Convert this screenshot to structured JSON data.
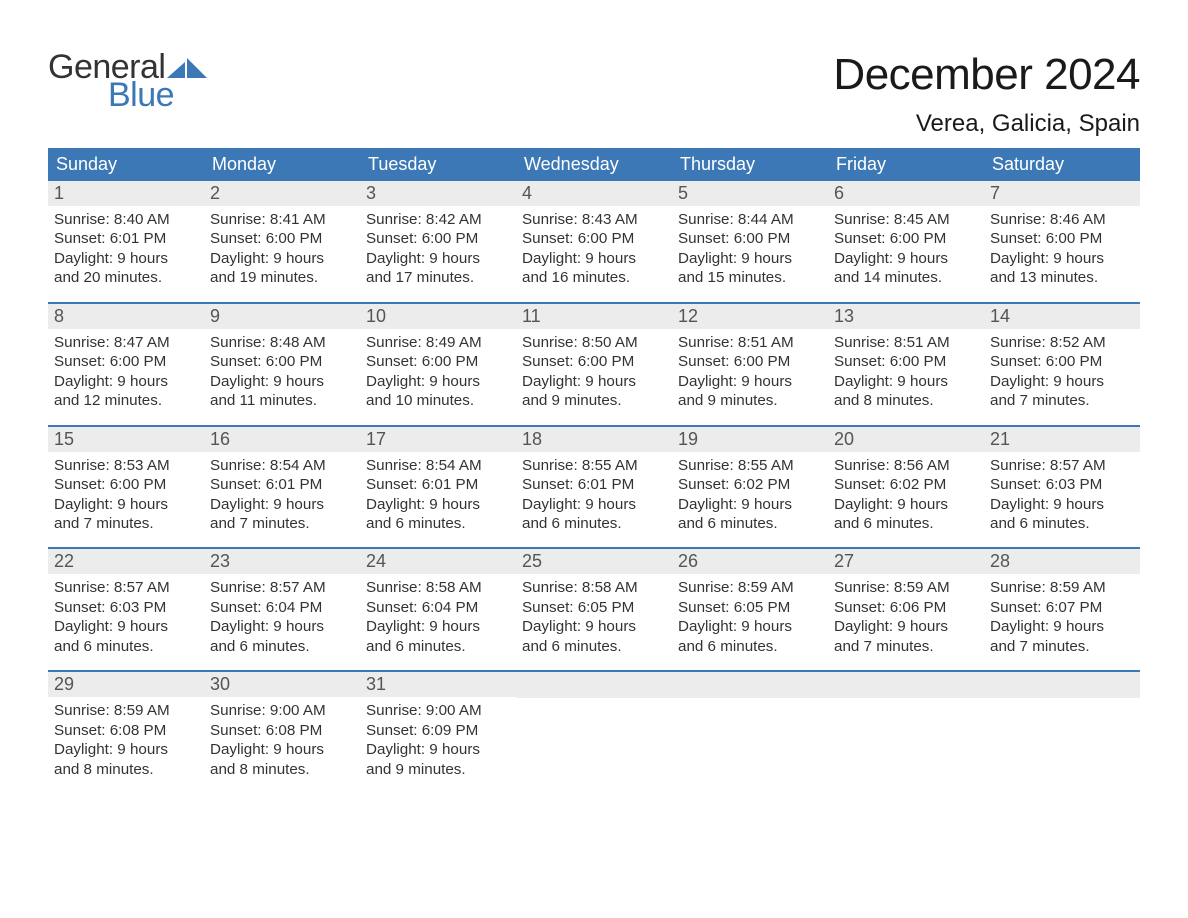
{
  "brand": {
    "word1": "General",
    "word2": "Blue",
    "accent_color": "#3b78b5"
  },
  "title": {
    "month": "December 2024",
    "location": "Verea, Galicia, Spain"
  },
  "day_names": [
    "Sunday",
    "Monday",
    "Tuesday",
    "Wednesday",
    "Thursday",
    "Friday",
    "Saturday"
  ],
  "colors": {
    "header_bg": "#3b78b5",
    "header_text": "#ffffff",
    "rule": "#3b78b5",
    "numrow_bg": "#ececec",
    "text": "#333333",
    "background": "#ffffff"
  },
  "typography": {
    "title_fontsize": 44,
    "location_fontsize": 24,
    "dayhead_fontsize": 18,
    "daynum_fontsize": 18,
    "body_fontsize": 15.2
  },
  "layout": {
    "columns": 7,
    "rows": 5
  },
  "days": [
    {
      "n": "1",
      "sunrise": "8:40 AM",
      "sunset": "6:01 PM",
      "daylight": "9 hours and 20 minutes."
    },
    {
      "n": "2",
      "sunrise": "8:41 AM",
      "sunset": "6:00 PM",
      "daylight": "9 hours and 19 minutes."
    },
    {
      "n": "3",
      "sunrise": "8:42 AM",
      "sunset": "6:00 PM",
      "daylight": "9 hours and 17 minutes."
    },
    {
      "n": "4",
      "sunrise": "8:43 AM",
      "sunset": "6:00 PM",
      "daylight": "9 hours and 16 minutes."
    },
    {
      "n": "5",
      "sunrise": "8:44 AM",
      "sunset": "6:00 PM",
      "daylight": "9 hours and 15 minutes."
    },
    {
      "n": "6",
      "sunrise": "8:45 AM",
      "sunset": "6:00 PM",
      "daylight": "9 hours and 14 minutes."
    },
    {
      "n": "7",
      "sunrise": "8:46 AM",
      "sunset": "6:00 PM",
      "daylight": "9 hours and 13 minutes."
    },
    {
      "n": "8",
      "sunrise": "8:47 AM",
      "sunset": "6:00 PM",
      "daylight": "9 hours and 12 minutes."
    },
    {
      "n": "9",
      "sunrise": "8:48 AM",
      "sunset": "6:00 PM",
      "daylight": "9 hours and 11 minutes."
    },
    {
      "n": "10",
      "sunrise": "8:49 AM",
      "sunset": "6:00 PM",
      "daylight": "9 hours and 10 minutes."
    },
    {
      "n": "11",
      "sunrise": "8:50 AM",
      "sunset": "6:00 PM",
      "daylight": "9 hours and 9 minutes."
    },
    {
      "n": "12",
      "sunrise": "8:51 AM",
      "sunset": "6:00 PM",
      "daylight": "9 hours and 9 minutes."
    },
    {
      "n": "13",
      "sunrise": "8:51 AM",
      "sunset": "6:00 PM",
      "daylight": "9 hours and 8 minutes."
    },
    {
      "n": "14",
      "sunrise": "8:52 AM",
      "sunset": "6:00 PM",
      "daylight": "9 hours and 7 minutes."
    },
    {
      "n": "15",
      "sunrise": "8:53 AM",
      "sunset": "6:00 PM",
      "daylight": "9 hours and 7 minutes."
    },
    {
      "n": "16",
      "sunrise": "8:54 AM",
      "sunset": "6:01 PM",
      "daylight": "9 hours and 7 minutes."
    },
    {
      "n": "17",
      "sunrise": "8:54 AM",
      "sunset": "6:01 PM",
      "daylight": "9 hours and 6 minutes."
    },
    {
      "n": "18",
      "sunrise": "8:55 AM",
      "sunset": "6:01 PM",
      "daylight": "9 hours and 6 minutes."
    },
    {
      "n": "19",
      "sunrise": "8:55 AM",
      "sunset": "6:02 PM",
      "daylight": "9 hours and 6 minutes."
    },
    {
      "n": "20",
      "sunrise": "8:56 AM",
      "sunset": "6:02 PM",
      "daylight": "9 hours and 6 minutes."
    },
    {
      "n": "21",
      "sunrise": "8:57 AM",
      "sunset": "6:03 PM",
      "daylight": "9 hours and 6 minutes."
    },
    {
      "n": "22",
      "sunrise": "8:57 AM",
      "sunset": "6:03 PM",
      "daylight": "9 hours and 6 minutes."
    },
    {
      "n": "23",
      "sunrise": "8:57 AM",
      "sunset": "6:04 PM",
      "daylight": "9 hours and 6 minutes."
    },
    {
      "n": "24",
      "sunrise": "8:58 AM",
      "sunset": "6:04 PM",
      "daylight": "9 hours and 6 minutes."
    },
    {
      "n": "25",
      "sunrise": "8:58 AM",
      "sunset": "6:05 PM",
      "daylight": "9 hours and 6 minutes."
    },
    {
      "n": "26",
      "sunrise": "8:59 AM",
      "sunset": "6:05 PM",
      "daylight": "9 hours and 6 minutes."
    },
    {
      "n": "27",
      "sunrise": "8:59 AM",
      "sunset": "6:06 PM",
      "daylight": "9 hours and 7 minutes."
    },
    {
      "n": "28",
      "sunrise": "8:59 AM",
      "sunset": "6:07 PM",
      "daylight": "9 hours and 7 minutes."
    },
    {
      "n": "29",
      "sunrise": "8:59 AM",
      "sunset": "6:08 PM",
      "daylight": "9 hours and 8 minutes."
    },
    {
      "n": "30",
      "sunrise": "9:00 AM",
      "sunset": "6:08 PM",
      "daylight": "9 hours and 8 minutes."
    },
    {
      "n": "31",
      "sunrise": "9:00 AM",
      "sunset": "6:09 PM",
      "daylight": "9 hours and 9 minutes."
    }
  ],
  "labels": {
    "sunrise": "Sunrise:",
    "sunset": "Sunset:",
    "daylight": "Daylight:"
  }
}
